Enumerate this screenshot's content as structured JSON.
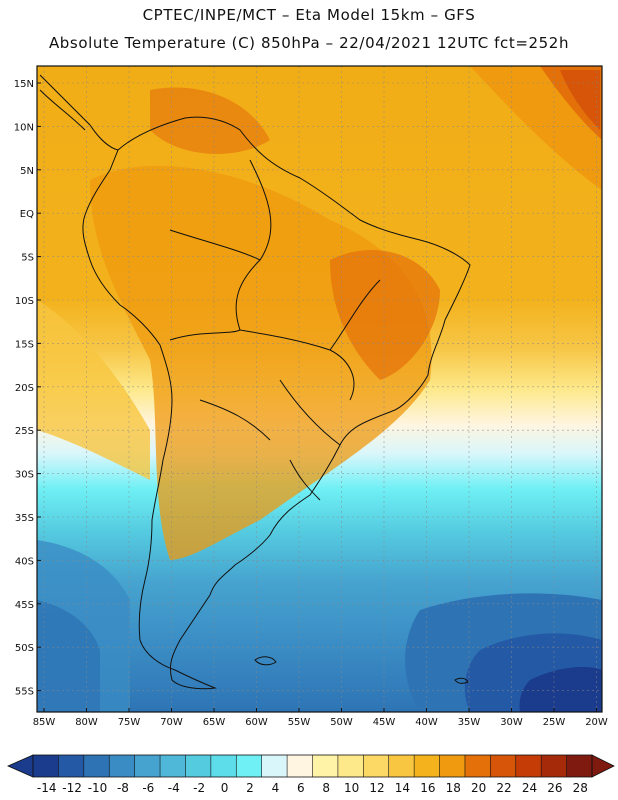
{
  "header": {
    "line1": "CPTEC/INPE/MCT –  Eta Model 15km – GFS",
    "line2": "Absolute Temperature (C) 850hPa – 22/04/2021 12UTC fct=252h"
  },
  "axes": {
    "lat_labels": [
      "15N",
      "10N",
      "5N",
      "EQ",
      "5S",
      "10S",
      "15S",
      "20S",
      "25S",
      "30S",
      "35S",
      "40S",
      "45S",
      "50S",
      "55S"
    ],
    "lon_labels": [
      "85W",
      "80W",
      "75W",
      "70W",
      "65W",
      "60W",
      "55W",
      "50W",
      "45W",
      "40W",
      "35W",
      "30W",
      "25W",
      "20W"
    ]
  },
  "colorbar": {
    "labels": [
      "-14",
      "-12",
      "-10",
      "-8",
      "-6",
      "-4",
      "-2",
      "0",
      "2",
      "4",
      "6",
      "8",
      "10",
      "12",
      "14",
      "16",
      "18",
      "20",
      "22",
      "24",
      "26",
      "28"
    ],
    "colors": [
      "#1b3b8c",
      "#245aa5",
      "#2e74b5",
      "#3a8cc4",
      "#46a3cf",
      "#4fb8d8",
      "#55cbe0",
      "#5ddcea",
      "#6ff0f5",
      "#d9f6fb",
      "#fff5e0",
      "#fff3a8",
      "#fde98a",
      "#fbd964",
      "#f8c640",
      "#f4b21c",
      "#ef9a0f",
      "#e4700a",
      "#d65508",
      "#c53c06",
      "#a52a0a",
      "#7e1a10"
    ]
  }
}
